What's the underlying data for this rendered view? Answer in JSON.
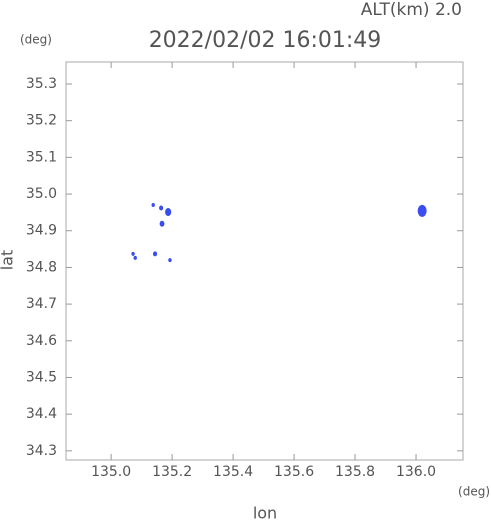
{
  "chart_data": {
    "type": "scatter",
    "title": "2022/02/02 16:01:49",
    "altitude_label": "ALT(km) 2.0",
    "y_unit": "(deg)",
    "x_unit": "(deg)",
    "xlabel": "lon",
    "ylabel": "lat",
    "xlim": [
      134.852,
      136.154
    ],
    "ylim": [
      34.275,
      35.36
    ],
    "xticks": [
      {
        "value": 135,
        "label": "135.0"
      },
      135.2,
      135.4,
      135.6,
      135.8,
      {
        "value": 136,
        "label": "136.0"
      }
    ],
    "yticks": [
      35.3,
      35.2,
      35.1,
      {
        "value": 35,
        "label": "35.0"
      },
      34.9,
      34.8,
      34.7,
      34.6,
      34.5,
      34.4,
      34.3
    ],
    "color": "#3a4ef0",
    "x": [
      136.02,
      135.138,
      135.164,
      135.187,
      135.167,
      135.072,
      135.079,
      135.144,
      135.193
    ],
    "y": [
      34.954,
      34.97,
      34.962,
      34.951,
      34.919,
      34.837,
      34.826,
      34.837,
      34.82
    ],
    "sizes": [
      5,
      1,
      1.5,
      3,
      2,
      1,
      1,
      1.5,
      1
    ]
  }
}
